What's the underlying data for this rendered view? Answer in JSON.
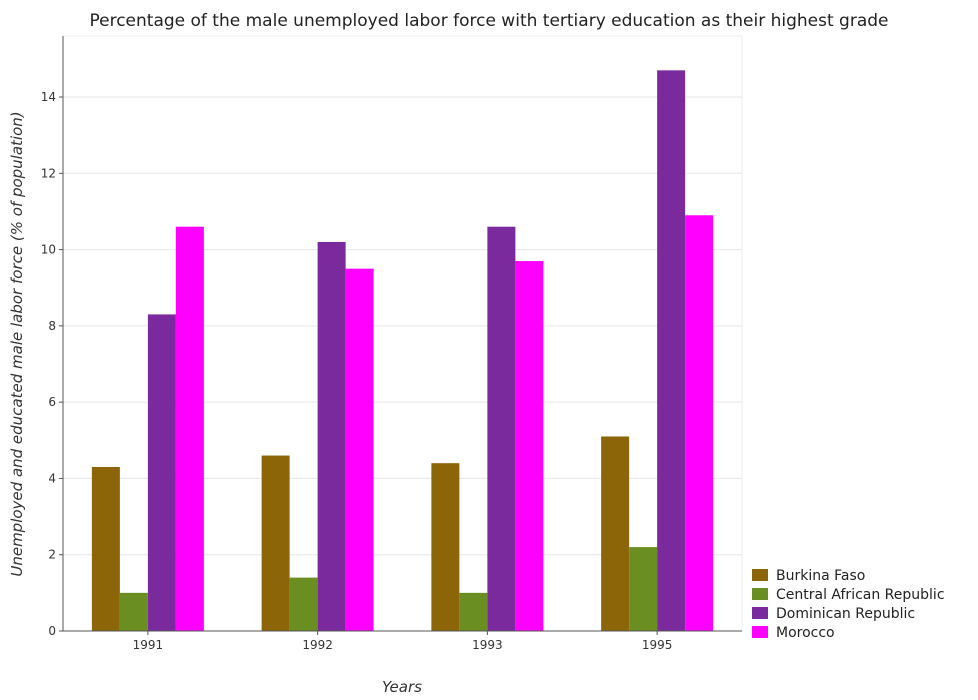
{
  "chart_data": {
    "type": "bar",
    "title": "Percentage of the male unemployed labor force with tertiary education as their highest grade",
    "xlabel": "Years",
    "ylabel": "Unemployed and educated male labor force (% of population)",
    "categories": [
      "1991",
      "1992",
      "1993",
      "1995"
    ],
    "ylim": [
      0,
      15.6
    ],
    "yticks": [
      0,
      2,
      4,
      6,
      8,
      10,
      12,
      14
    ],
    "grid": true,
    "legend_position": "bottom-right",
    "series": [
      {
        "name": "Burkina Faso",
        "color": "#8b6508",
        "values": [
          4.3,
          4.6,
          4.4,
          5.1
        ]
      },
      {
        "name": "Central African Republic",
        "color": "#6b8e23",
        "values": [
          1.0,
          1.4,
          1.0,
          2.2
        ]
      },
      {
        "name": "Dominican Republic",
        "color": "#7b2a9e",
        "values": [
          8.3,
          10.2,
          10.6,
          14.7
        ]
      },
      {
        "name": "Morocco",
        "color": "#ff00ff",
        "values": [
          10.6,
          9.5,
          9.7,
          10.9
        ]
      }
    ]
  }
}
